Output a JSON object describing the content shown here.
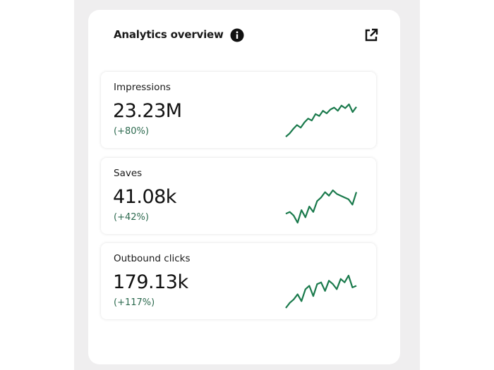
{
  "header": {
    "title": "Analytics overview"
  },
  "trend_color": "#1a7a4c",
  "metrics": [
    {
      "label": "Impressions",
      "value": "23.23M",
      "change": "(+80%)",
      "trend": [
        0,
        5,
        12,
        18,
        14,
        22,
        28,
        25,
        35,
        32,
        40,
        36,
        42,
        45,
        40,
        48,
        44,
        50,
        38,
        46
      ]
    },
    {
      "label": "Saves",
      "value": "41.08k",
      "change": "(+42%)",
      "trend": [
        20,
        22,
        18,
        10,
        24,
        16,
        28,
        22,
        34,
        38,
        44,
        40,
        46,
        42,
        40,
        38,
        36,
        30,
        44
      ]
    },
    {
      "label": "Outbound clicks",
      "value": "179.13k",
      "change": "(+117%)",
      "trend": [
        0,
        6,
        10,
        16,
        8,
        22,
        26,
        14,
        28,
        30,
        20,
        32,
        28,
        22,
        34,
        30,
        38,
        24,
        26
      ]
    }
  ]
}
